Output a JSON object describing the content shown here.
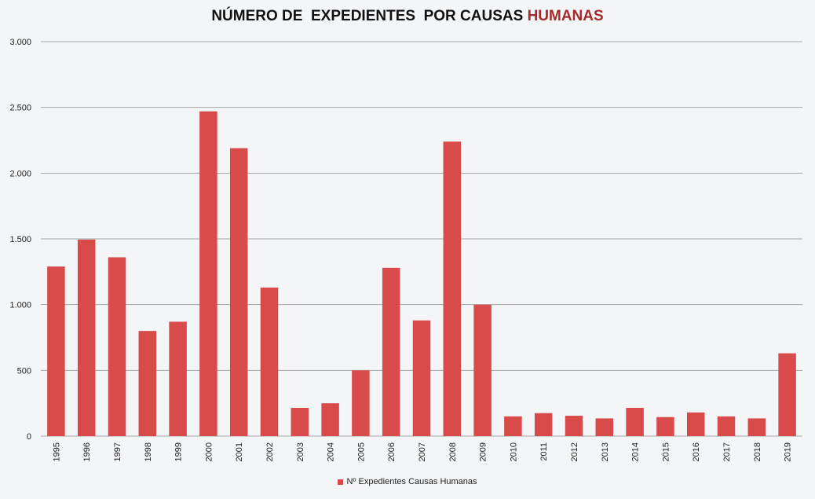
{
  "chart_data": {
    "type": "bar",
    "title_part1": "NÚMERO DE  EXPEDIENTES  POR CAUSAS ",
    "title_part2": "HUMANAS",
    "categories": [
      "1995",
      "1996",
      "1997",
      "1998",
      "1999",
      "2000",
      "2001",
      "2002",
      "2003",
      "2004",
      "2005",
      "2006",
      "2007",
      "2008",
      "2009",
      "2010",
      "2011",
      "2012",
      "2013",
      "2014",
      "2015",
      "2016",
      "2017",
      "2018",
      "2019"
    ],
    "series": [
      {
        "name": "Nº Expedientes Causas Humanas",
        "values": [
          1290,
          1495,
          1360,
          800,
          870,
          2470,
          2190,
          1130,
          215,
          250,
          500,
          1280,
          880,
          2240,
          1000,
          150,
          175,
          155,
          135,
          215,
          145,
          180,
          150,
          135,
          630
        ]
      }
    ],
    "ylim": [
      0,
      3000
    ],
    "yticks": [
      0,
      500,
      1000,
      1500,
      2000,
      2500,
      3000
    ],
    "ytick_labels": [
      "0",
      "500",
      "1.000",
      "1.500",
      "2.000",
      "2.500",
      "3.000"
    ],
    "grid": true,
    "legend_position": "bottom"
  },
  "colors": {
    "bar": "#d94b4b",
    "title_accent": "#a52a2a",
    "grid": "#a6a6a6",
    "background": "#f4f5f7"
  }
}
